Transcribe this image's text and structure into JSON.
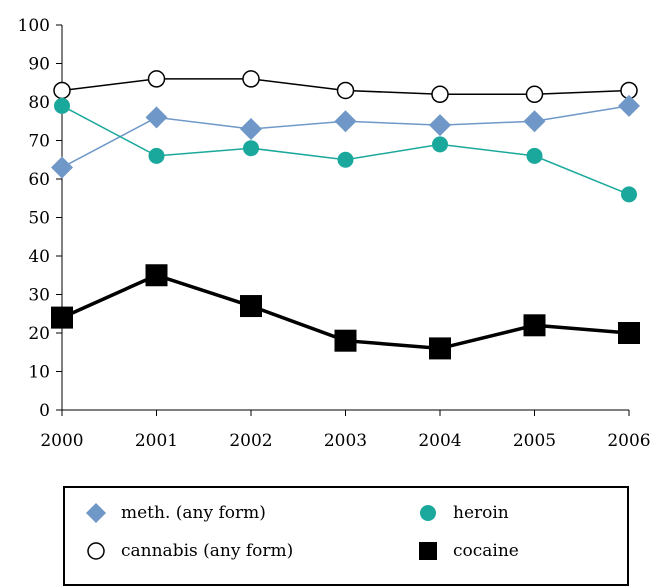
{
  "chart_data": {
    "type": "line",
    "x": [
      "2000",
      "2001",
      "2002",
      "2003",
      "2004",
      "2005",
      "2006"
    ],
    "ylim": [
      0,
      100
    ],
    "yticks": [
      "0",
      "10",
      "20",
      "30",
      "40",
      "50",
      "60",
      "70",
      "80",
      "90",
      "100"
    ],
    "grid": false,
    "legend_position": "bottom",
    "series": [
      {
        "name": "meth. (any form)",
        "values": [
          63,
          76,
          73,
          75,
          74,
          75,
          79
        ],
        "color": "#6f98c8",
        "marker": "diamond"
      },
      {
        "name": "heroin",
        "values": [
          79,
          66,
          68,
          65,
          69,
          66,
          56
        ],
        "color": "#1aa89c",
        "marker": "circle-filled"
      },
      {
        "name": "cannabis (any form)",
        "values": [
          83,
          86,
          86,
          83,
          82,
          82,
          83
        ],
        "color": "#000000",
        "marker": "circle-open"
      },
      {
        "name": "cocaine",
        "values": [
          24,
          35,
          27,
          18,
          16,
          22,
          20
        ],
        "color": "#000000",
        "marker": "square"
      }
    ]
  },
  "legend": {
    "meth": "meth. (any form)",
    "heroin": "heroin",
    "cannabis": "cannabis (any form)",
    "cocaine": "cocaine"
  }
}
